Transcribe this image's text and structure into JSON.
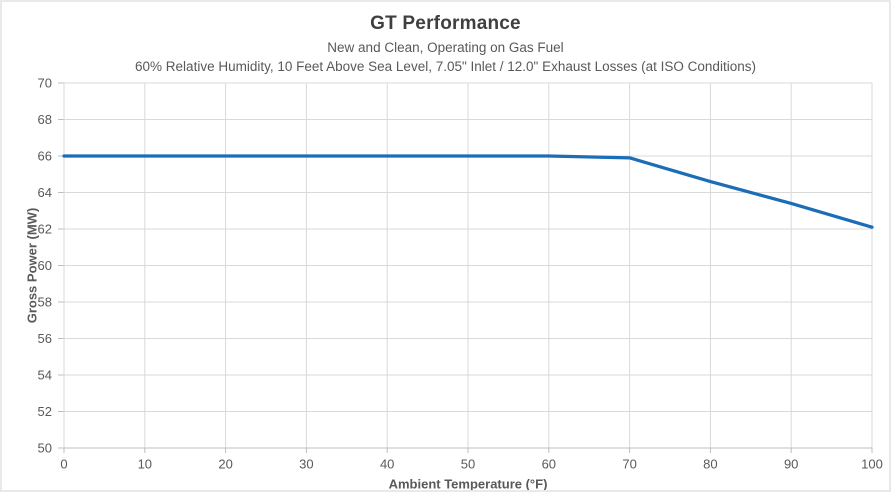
{
  "chart_data": {
    "type": "line",
    "title": "GT Performance",
    "subtitle1": "New and Clean, Operating on Gas Fuel",
    "subtitle2": "60% Relative Humidity, 10 Feet Above Sea Level, 7.05\" Inlet / 12.0\" Exhaust Losses (at ISO Conditions)",
    "xlabel": "Ambient Temperature (°F)",
    "ylabel": "Gross Power (MW)",
    "x": [
      0,
      10,
      20,
      30,
      40,
      50,
      60,
      70,
      80,
      90,
      100
    ],
    "series": [
      {
        "name": "Gross Power",
        "values": [
          66,
          66,
          66,
          66,
          66,
          66,
          66,
          65.9,
          64.6,
          63.4,
          62.1
        ]
      }
    ],
    "xlim": [
      0,
      100
    ],
    "ylim": [
      50,
      70
    ],
    "xtick_step": 10,
    "ytick_step": 2,
    "grid": true,
    "legend": "none",
    "colors": {
      "line": "#1B6DB8",
      "gridline": "#D9D9D9",
      "axis_line": "#BFBFBF",
      "tick_text": "#595959",
      "title_text": "#3F3F3F",
      "background": "#FFFFFF",
      "border": "#E9E9E9"
    }
  }
}
